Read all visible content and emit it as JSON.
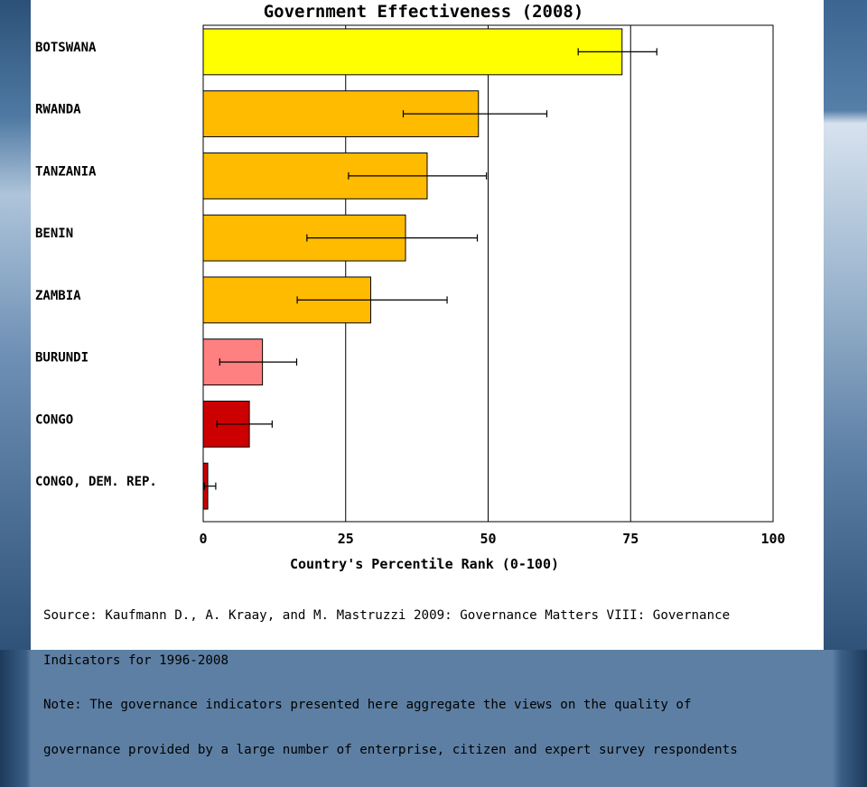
{
  "chart_data": {
    "type": "bar",
    "orientation": "horizontal",
    "title": "Government Effectiveness (2008)",
    "xlabel": "Country's Percentile Rank (0-100)",
    "xlim": [
      0,
      100
    ],
    "xticks": [
      "0",
      "25",
      "50",
      "75",
      "100"
    ],
    "grid": true,
    "categories": [
      "BOTSWANA",
      "RWANDA",
      "TANZANIA",
      "BENIN",
      "ZAMBIA",
      "BURUNDI",
      "CONGO",
      "CONGO, DEM. REP."
    ],
    "values": [
      73.5,
      48.3,
      39.3,
      35.5,
      29.4,
      10.4,
      8.1,
      0.8
    ],
    "error_low": [
      65.8,
      35.1,
      25.5,
      18.2,
      16.5,
      2.9,
      2.4,
      0.2
    ],
    "error_high": [
      79.6,
      60.3,
      49.7,
      48.1,
      42.8,
      16.4,
      12.1,
      2.2
    ],
    "colors": [
      "#ffff00",
      "#ffbb00",
      "#ffbb00",
      "#ffbb00",
      "#ffbb00",
      "#ff8080",
      "#cc0000",
      "#cc0000"
    ]
  },
  "footnote": {
    "line1": "Source: Kaufmann D., A. Kraay, and M. Mastruzzi 2009: Governance Matters VIII: Governance",
    "line2": "Indicators for 1996-2008",
    "line3": "Note: The governance indicators presented here aggregate the views on the quality of",
    "line4": "governance provided by a large number of enterprise, citizen and expert survey respondents"
  }
}
